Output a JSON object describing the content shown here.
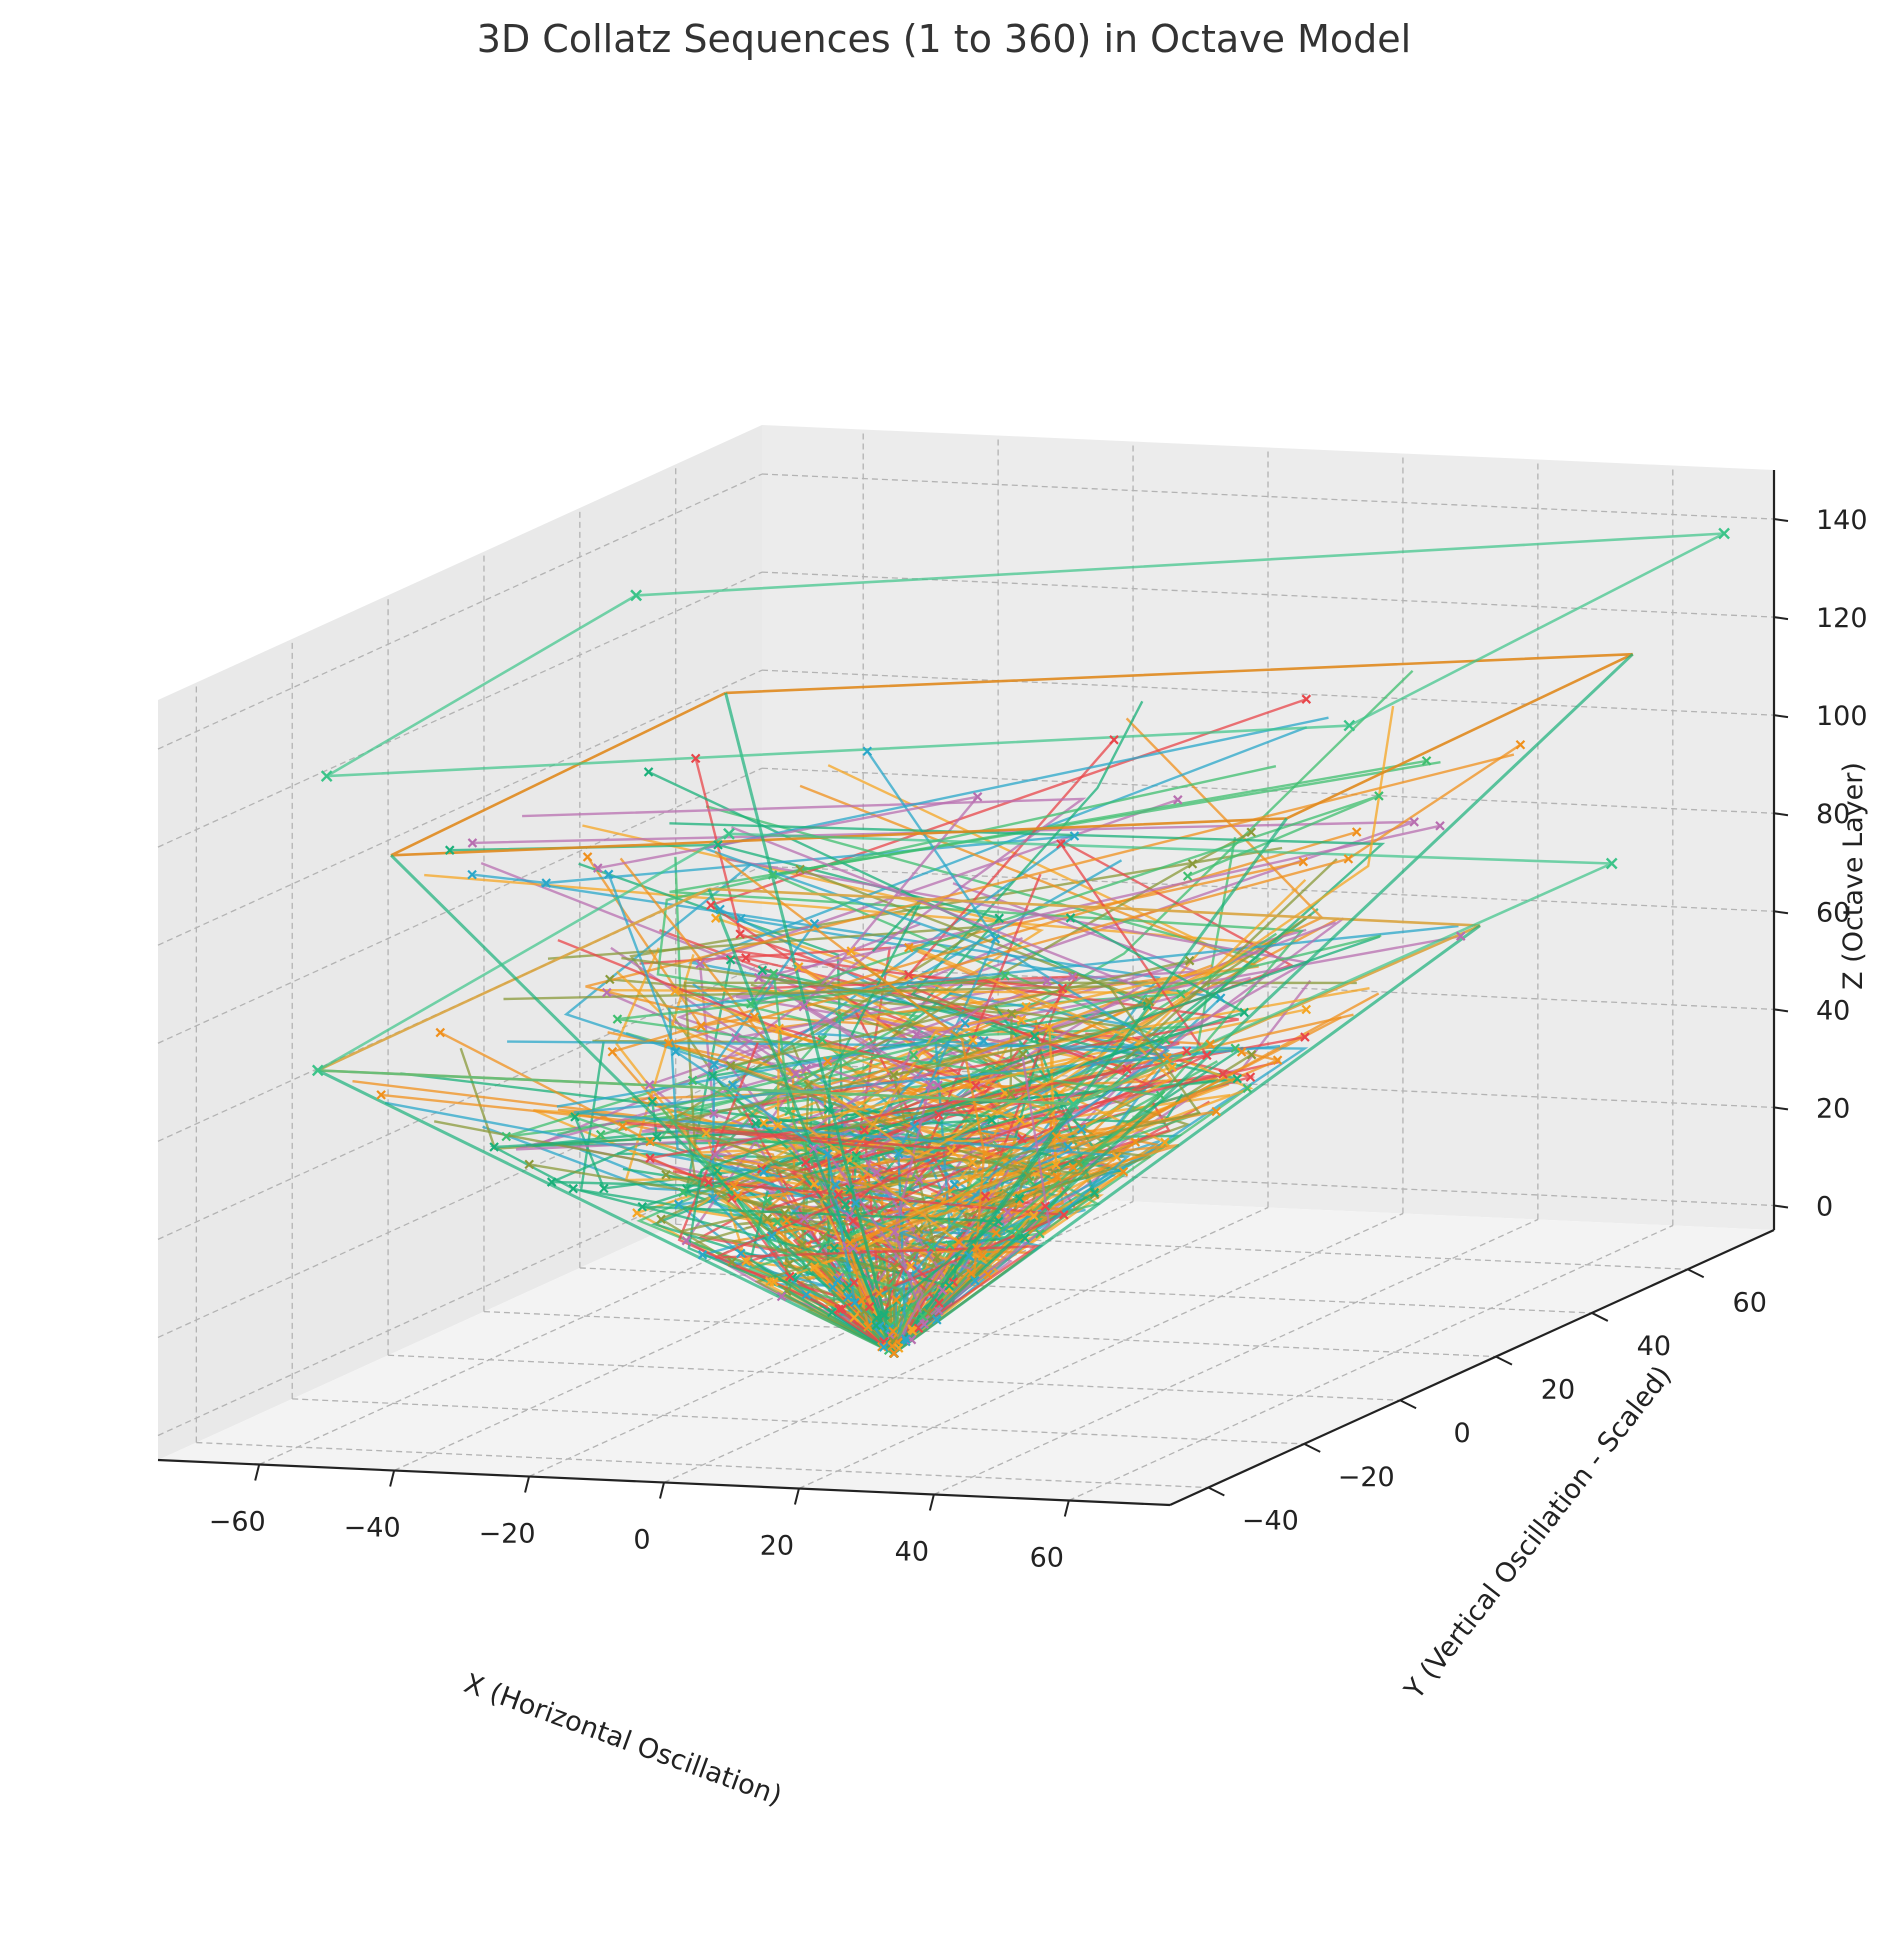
{
  "chart_data": {
    "type": "line",
    "projection": "3d",
    "title": "3D Collatz Sequences (1 to 360) in Octave Model",
    "xlabel": "X (Horizontal Oscillation)",
    "ylabel": "Y (Vertical Oscillation - Scaled)",
    "zlabel": "Z (Octave Layer)",
    "x_ticks": [
      "−60",
      "−40",
      "−20",
      "0",
      "20",
      "40",
      "60"
    ],
    "y_ticks": [
      "−40",
      "−20",
      "0",
      "20",
      "40",
      "60"
    ],
    "z_ticks": [
      "0",
      "20",
      "40",
      "60",
      "80",
      "100",
      "120",
      "140"
    ],
    "xlim": [
      -75,
      75
    ],
    "ylim": [
      -48,
      78
    ],
    "zlim": [
      -5,
      150
    ],
    "grid": true,
    "marker": "x",
    "series_count": 360,
    "palette": [
      "#1ab07a",
      "#f5a623",
      "#e8464a",
      "#2aa7c9",
      "#8a9a3a",
      "#3fbf6f",
      "#f0901c",
      "#b86fb0"
    ],
    "structure": {
      "apex": {
        "x": 0,
        "y": 0,
        "z": 0
      },
      "lower_cone_rim": [
        {
          "x": -58,
          "y": 43,
          "z": 72
        },
        {
          "x": 57,
          "y": 42,
          "z": 72
        },
        {
          "x": 55,
          "y": -40,
          "z": 72
        },
        {
          "x": -57,
          "y": -40,
          "z": 72
        }
      ],
      "upper_cone_rim": [
        {
          "x": -47,
          "y": 31,
          "z": 118
        },
        {
          "x": 64,
          "y": 64,
          "z": 118
        },
        {
          "x": 66,
          "y": -11,
          "z": 118
        },
        {
          "x": -44,
          "y": -43,
          "z": 118
        }
      ],
      "outlier_corners": [
        {
          "x": -60,
          "y": 50,
          "z": 80
        },
        {
          "x": 68,
          "y": 54,
          "z": 80
        },
        {
          "x": -56,
          "y": 25,
          "z": 140
        },
        {
          "x": 74,
          "y": 69,
          "z": 141
        },
        {
          "x": 76,
          "y": -12,
          "z": 138
        },
        {
          "x": -50,
          "y": -48,
          "z": 136
        }
      ]
    }
  }
}
